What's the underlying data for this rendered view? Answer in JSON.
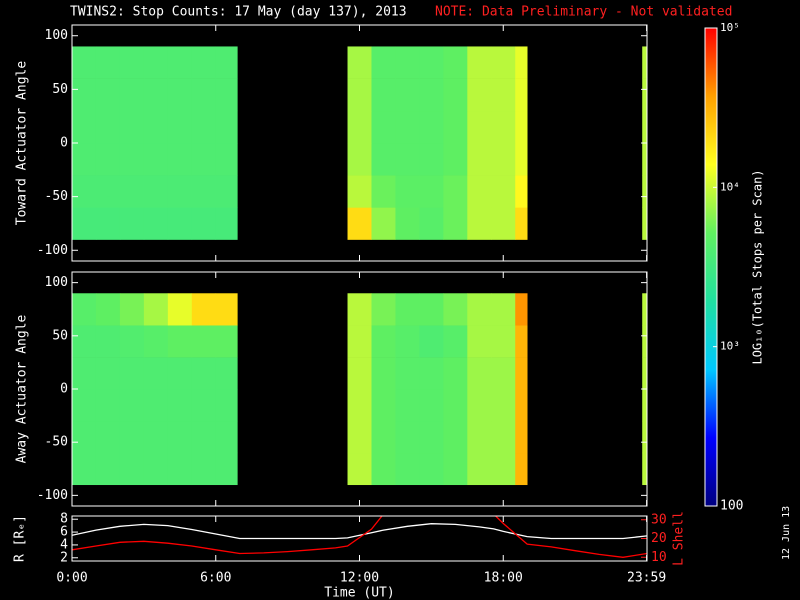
{
  "title": "TWINS2: Stop Counts: 17 May (day 137), 2013",
  "note": "NOTE: Data Preliminary - Not validated",
  "date_stamp": "12 Jun 13",
  "colorbar": {
    "label": "LOG₁₀(Total Stops per Scan)",
    "log": true,
    "lim": [
      100,
      100000
    ],
    "ticks": [
      100,
      {
        "value": 1000,
        "label": "10³"
      },
      {
        "value": 10000,
        "label": "10⁴"
      },
      {
        "value": 100000,
        "label": "10⁵"
      }
    ],
    "colors": [
      "#000080",
      "#0000ff",
      "#00c8ff",
      "#20e0a0",
      "#60f060",
      "#ffff20",
      "#ffa000",
      "#ff0000"
    ]
  },
  "chart_data": [
    {
      "type": "heatmap",
      "ylabel": "Toward Actuator Angle",
      "x_bins": [
        0,
        1,
        2,
        3,
        4,
        5,
        6,
        6.9,
        11.5,
        12.5,
        13.5,
        14.5,
        15.5,
        16.5,
        17.5,
        18.5,
        19,
        23.8,
        24
      ],
      "y_bins": [
        -90,
        -60,
        -30,
        0,
        30,
        60,
        90
      ],
      "values": [
        [
          3500,
          3500,
          3500,
          3500,
          3500,
          3500,
          3500,
          null,
          20000,
          7000,
          5000,
          4500,
          5500,
          9000,
          9000,
          20000,
          null,
          9000
        ],
        [
          3800,
          3800,
          3800,
          3800,
          3800,
          3800,
          3800,
          null,
          9000,
          5500,
          4800,
          4800,
          5500,
          9000,
          9000,
          15000,
          null,
          9000
        ],
        [
          4000,
          4000,
          4000,
          4000,
          4000,
          4000,
          4000,
          null,
          8000,
          4500,
          4500,
          4500,
          5000,
          9000,
          9000,
          12000,
          null,
          9000
        ],
        [
          4000,
          4000,
          4000,
          4000,
          4000,
          4000,
          4000,
          null,
          8000,
          4500,
          4500,
          4500,
          5000,
          9000,
          9000,
          12000,
          null,
          9000
        ],
        [
          4000,
          4000,
          4000,
          4000,
          4000,
          4000,
          4000,
          null,
          8000,
          4500,
          4500,
          4500,
          5000,
          9000,
          9000,
          12000,
          null,
          9000
        ],
        [
          4000,
          4000,
          4000,
          4000,
          4000,
          4000,
          4000,
          null,
          8000,
          4500,
          4500,
          4500,
          5000,
          9000,
          9000,
          12000,
          null,
          9000
        ]
      ],
      "xlim": [
        0,
        24
      ],
      "xticks": [
        0,
        6,
        12,
        18,
        23.983
      ],
      "ylim": [
        -110,
        110
      ],
      "yticks": [
        -100,
        -50,
        0,
        50,
        100
      ]
    },
    {
      "type": "heatmap",
      "ylabel": "Away Actuator Angle",
      "x_bins": [
        0,
        1,
        2,
        3,
        4,
        5,
        6,
        6.9,
        11.5,
        12.5,
        13.5,
        14.5,
        15.5,
        16.5,
        17.5,
        18.5,
        19,
        23.8,
        24
      ],
      "y_bins": [
        -90,
        -60,
        -30,
        0,
        30,
        60,
        90
      ],
      "values": [
        [
          4000,
          4000,
          4000,
          4000,
          4000,
          4000,
          4000,
          null,
          9000,
          5000,
          4500,
          4500,
          5000,
          7500,
          7500,
          30000,
          null,
          9000
        ],
        [
          4000,
          4000,
          4000,
          4000,
          4000,
          4000,
          4000,
          null,
          9000,
          5000,
          4500,
          4500,
          5000,
          7500,
          7500,
          30000,
          null,
          9000
        ],
        [
          4000,
          4000,
          4000,
          4000,
          4000,
          4000,
          4000,
          null,
          9000,
          5000,
          4500,
          4500,
          5000,
          7500,
          7500,
          30000,
          null,
          9000
        ],
        [
          4000,
          4000,
          4000,
          4000,
          4000,
          4000,
          4000,
          null,
          9000,
          5000,
          4500,
          4500,
          5000,
          7500,
          7500,
          30000,
          null,
          9000
        ],
        [
          4000,
          4000,
          4200,
          4500,
          5000,
          5000,
          5000,
          null,
          9000,
          5000,
          4500,
          4000,
          4500,
          8000,
          8000,
          30000,
          null,
          9000
        ],
        [
          4500,
          5000,
          6000,
          8000,
          12000,
          20000,
          20000,
          null,
          9000,
          6000,
          5000,
          5000,
          6000,
          8000,
          8000,
          40000,
          null,
          9000
        ]
      ],
      "xlim": [
        0,
        24
      ],
      "xticks": [
        0,
        6,
        12,
        18,
        23.983
      ],
      "ylim": [
        -110,
        110
      ],
      "yticks": [
        -100,
        -50,
        0,
        50,
        100
      ]
    },
    {
      "type": "line",
      "xlabel": "Time (UT)",
      "ylabel": "R [Rₑ]",
      "y2label": "L Shell",
      "x": [
        0,
        1,
        2,
        3,
        4,
        5,
        6,
        7,
        8,
        9,
        10,
        11,
        11.5,
        12.5,
        13,
        14,
        15,
        16,
        17,
        17.6,
        18,
        19,
        20,
        21,
        22,
        23,
        24
      ],
      "series": [
        {
          "name": "R",
          "color": "#ffffff",
          "axis": "y",
          "values": [
            5.5,
            6.3,
            6.9,
            7.2,
            7.0,
            6.4,
            5.7,
            5.0,
            5.0,
            5.0,
            5.0,
            5.0,
            5.1,
            5.9,
            6.3,
            6.9,
            7.3,
            7.2,
            6.8,
            6.5,
            6.1,
            5.3,
            5.0,
            5.0,
            5.0,
            5.0,
            5.4
          ]
        },
        {
          "name": "L Shell",
          "color": "#ff0000",
          "axis": "y2",
          "values": [
            14,
            16,
            18,
            18.5,
            17.5,
            16,
            14,
            12,
            12.3,
            13,
            14,
            15,
            16,
            25,
            33,
            null,
            null,
            null,
            null,
            33,
            28,
            17,
            15.5,
            13.5,
            11.5,
            10,
            12
          ]
        }
      ],
      "xlim": [
        0,
        24
      ],
      "xticks": [
        {
          "value": 0,
          "label": "0:00"
        },
        {
          "value": 6,
          "label": "6:00"
        },
        {
          "value": 12,
          "label": "12:00"
        },
        {
          "value": 18,
          "label": "18:00"
        },
        {
          "value": 23.983,
          "label": "23:59"
        }
      ],
      "ylim": [
        1.5,
        8.5
      ],
      "yticks": [
        2,
        4,
        6,
        8
      ],
      "y2lim": [
        8,
        32
      ],
      "y2ticks": [
        10,
        20,
        30
      ]
    }
  ]
}
